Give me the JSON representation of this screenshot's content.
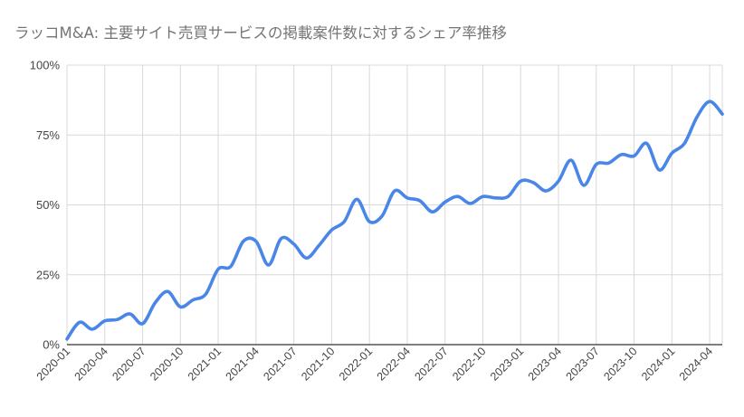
{
  "chart_data": {
    "type": "line",
    "title": "ラッコM&A: 主要サイト売買サービスの掲載案件数に対するシェア率推移",
    "xlabel": "",
    "ylabel": "",
    "ylim": [
      0,
      100
    ],
    "y_ticks": [
      "0%",
      "25%",
      "50%",
      "75%",
      "100%"
    ],
    "y_tick_values": [
      0,
      25,
      50,
      75,
      100
    ],
    "x_tick_labels": [
      "2020-01",
      "2020-04",
      "2020-07",
      "2020-10",
      "2021-01",
      "2021-04",
      "2021-07",
      "2021-10",
      "2022-01",
      "2022-04",
      "2022-07",
      "2022-10",
      "2023-01",
      "2023-04",
      "2023-07",
      "2023-10",
      "2024-01",
      "2024-04"
    ],
    "grid": true,
    "legend": "none",
    "line_color": "#4a86e8",
    "categories": [
      "2020-01",
      "2020-02",
      "2020-03",
      "2020-04",
      "2020-05",
      "2020-06",
      "2020-07",
      "2020-08",
      "2020-09",
      "2020-10",
      "2020-11",
      "2020-12",
      "2021-01",
      "2021-02",
      "2021-03",
      "2021-04",
      "2021-05",
      "2021-06",
      "2021-07",
      "2021-08",
      "2021-09",
      "2021-10",
      "2021-11",
      "2021-12",
      "2022-01",
      "2022-02",
      "2022-03",
      "2022-04",
      "2022-05",
      "2022-06",
      "2022-07",
      "2022-08",
      "2022-09",
      "2022-10",
      "2022-11",
      "2022-12",
      "2023-01",
      "2023-02",
      "2023-03",
      "2023-04",
      "2023-05",
      "2023-06",
      "2023-07",
      "2023-08",
      "2023-09",
      "2023-10",
      "2023-11",
      "2023-12",
      "2024-01",
      "2024-02",
      "2024-03",
      "2024-04",
      "2024-05"
    ],
    "series": [
      {
        "values": [
          2,
          8,
          5.5,
          8.5,
          9,
          11,
          7.5,
          15,
          19,
          13.5,
          16,
          18,
          27,
          28,
          37,
          37,
          28.5,
          38,
          36,
          31,
          35.5,
          41,
          44,
          52,
          44,
          46,
          55,
          52.5,
          51.5,
          47.5,
          51,
          53,
          50.5,
          53,
          52.5,
          53,
          58.5,
          58,
          55,
          58.5,
          66,
          57,
          64.5,
          65,
          68,
          67.5,
          72,
          62.5,
          68.5,
          72,
          81.5,
          87,
          82.5
        ]
      }
    ]
  }
}
